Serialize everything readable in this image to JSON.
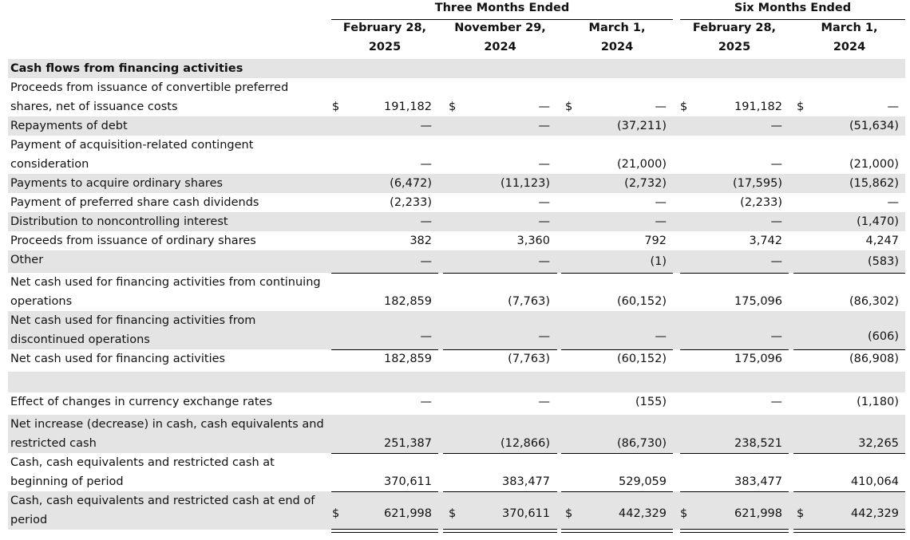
{
  "header": {
    "group1": "Three Months Ended",
    "group2": "Six Months Ended",
    "columns": [
      {
        "line1": "February 28,",
        "line2": "2025"
      },
      {
        "line1": "November 29,",
        "line2": "2024"
      },
      {
        "line1": "March 1,",
        "line2": "2024"
      },
      {
        "line1": "February 28,",
        "line2": "2025"
      },
      {
        "line1": "March 1,",
        "line2": "2024"
      }
    ]
  },
  "currency_symbol": "$",
  "section_title": "Cash flows from financing activities",
  "rows": [
    {
      "label": [
        "Proceeds from issuance of convertible preferred",
        "shares, net of issuance costs"
      ],
      "values": [
        "191,182",
        "—",
        "—",
        "191,182",
        "—"
      ],
      "dollar": true
    },
    {
      "label": [
        "Repayments of debt"
      ],
      "values": [
        "—",
        "—",
        "(37,211)",
        "—",
        "(51,634)"
      ]
    },
    {
      "label": [
        "Payment of acquisition-related contingent",
        "consideration"
      ],
      "values": [
        "—",
        "—",
        "(21,000)",
        "—",
        "(21,000)"
      ]
    },
    {
      "label": [
        "Payments to acquire ordinary shares"
      ],
      "values": [
        "(6,472)",
        "(11,123)",
        "(2,732)",
        "(17,595)",
        "(15,862)"
      ]
    },
    {
      "label": [
        "Payment of preferred share cash dividends"
      ],
      "values": [
        "(2,233)",
        "—",
        "—",
        "(2,233)",
        "—"
      ]
    },
    {
      "label": [
        "Distribution to noncontrolling interest"
      ],
      "values": [
        "—",
        "—",
        "—",
        "—",
        "(1,470)"
      ]
    },
    {
      "label": [
        "Proceeds from issuance of ordinary shares"
      ],
      "values": [
        "382",
        "3,360",
        "792",
        "3,742",
        "4,247"
      ]
    },
    {
      "label": [
        "Other"
      ],
      "values": [
        "—",
        "—",
        "(1)",
        "—",
        "(583)"
      ]
    },
    {
      "label": [
        "Net cash used for financing activities from continuing",
        "operations"
      ],
      "values": [
        "182,859",
        "(7,763)",
        "(60,152)",
        "175,096",
        "(86,302)"
      ]
    },
    {
      "label": [
        "Net cash used for financing activities from",
        "discontinued operations"
      ],
      "values": [
        "—",
        "—",
        "—",
        "—",
        "(606)"
      ]
    },
    {
      "label": [
        "Net cash used for financing activities"
      ],
      "values": [
        "182,859",
        "(7,763)",
        "(60,152)",
        "175,096",
        "(86,908)"
      ]
    },
    {
      "label": [
        ""
      ],
      "values": [
        "",
        "",
        "",
        "",
        ""
      ]
    },
    {
      "label": [
        "Effect of changes in currency exchange rates"
      ],
      "values": [
        "—",
        "—",
        "(155)",
        "—",
        "(1,180)"
      ]
    },
    {
      "label": [
        "Net increase (decrease) in cash, cash equivalents and",
        "restricted cash"
      ],
      "values": [
        "251,387",
        "(12,866)",
        "(86,730)",
        "238,521",
        "32,265"
      ]
    },
    {
      "label": [
        "Cash, cash equivalents and restricted cash at",
        "beginning of period"
      ],
      "values": [
        "370,611",
        "383,477",
        "529,059",
        "383,477",
        "410,064"
      ]
    },
    {
      "label": [
        "Cash, cash equivalents and restricted cash at end of",
        "period"
      ],
      "values": [
        "621,998",
        "370,611",
        "442,329",
        "621,998",
        "442,329"
      ],
      "dollar": true
    }
  ]
}
